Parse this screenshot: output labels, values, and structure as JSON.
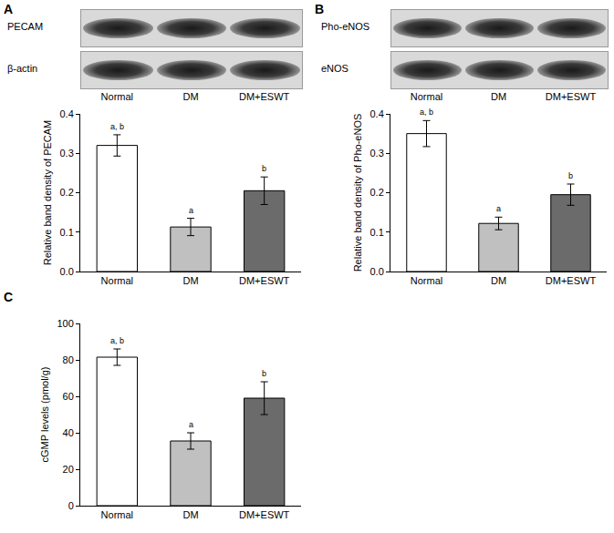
{
  "chart_data": [
    {
      "panel": "A",
      "type": "bar",
      "blot": [
        "PECAM",
        "β-actin"
      ],
      "categories": [
        "Normal",
        "DM",
        "DM+ESWT"
      ],
      "values": [
        0.32,
        0.113,
        0.205
      ],
      "errors": [
        0.027,
        0.022,
        0.035
      ],
      "annotations": [
        "a, b",
        "a",
        "b"
      ],
      "colors": [
        "#ffffff",
        "#c0c0c0",
        "#6b6b6b"
      ],
      "y_label": "Relative band density of PECAM",
      "ylim": [
        0,
        0.4
      ],
      "yticks": [
        {
          "value": 0,
          "label": "0.0"
        },
        0.1,
        0.2,
        0.3,
        0.4
      ],
      "grid": false
    },
    {
      "panel": "B",
      "type": "bar",
      "blot": [
        "Pho-eNOS",
        "eNOS"
      ],
      "categories": [
        "Normal",
        "DM",
        "DM+ESWT"
      ],
      "values": [
        0.35,
        0.122,
        0.195
      ],
      "errors": [
        0.033,
        0.016,
        0.027
      ],
      "annotations": [
        "a, b",
        "a",
        "b"
      ],
      "colors": [
        "#ffffff",
        "#c0c0c0",
        "#6b6b6b"
      ],
      "y_label": "Relative band density of Pho-eNOS",
      "ylim": [
        0,
        0.4
      ],
      "yticks": [
        {
          "value": 0,
          "label": "0.0"
        },
        0.1,
        0.2,
        0.3,
        0.4
      ],
      "grid": false
    },
    {
      "panel": "C",
      "type": "bar",
      "categories": [
        "Normal",
        "DM",
        "DM+ESWT"
      ],
      "values": [
        81.5,
        35.5,
        59
      ],
      "errors": [
        4.5,
        4.5,
        9
      ],
      "annotations": [
        "a, b",
        "a",
        "b"
      ],
      "colors": [
        "#ffffff",
        "#c0c0c0",
        "#6b6b6b"
      ],
      "y_label": "cGMP levels (pmol/g)",
      "ylim": [
        0,
        100
      ],
      "yticks": [
        0,
        20,
        40,
        60,
        80,
        100
      ],
      "grid": false
    }
  ]
}
